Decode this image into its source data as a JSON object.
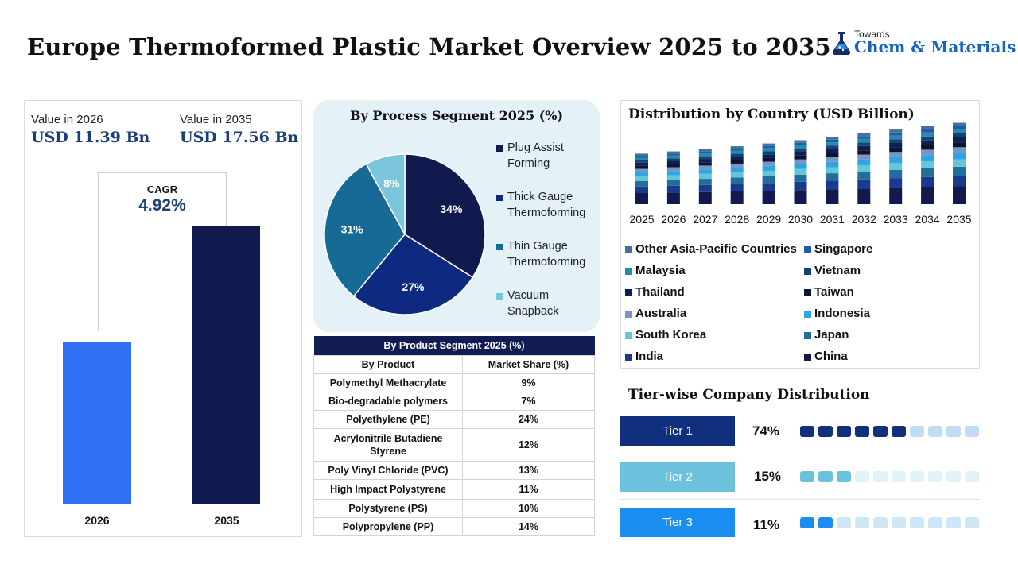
{
  "title": "Europe Thermoformed Plastic Market Overview 2025 to 2035",
  "logo": {
    "line1": "Towards",
    "line2": "Chem & Materials"
  },
  "market_value": {
    "label_2026": "Value in 2026",
    "value_2026": "USD 11.39 Bn",
    "label_2035": "Value in 2035",
    "value_2035": "USD 17.56 Bn",
    "cagr_label": "CAGR",
    "cagr_value": "4.92%",
    "year_2026": "2026",
    "year_2035": "2035"
  },
  "process_segment": {
    "title": "By Process Segment 2025 (%)",
    "legend": [
      {
        "label": "Plug Assist Forming",
        "line1": "Plug Assist",
        "line2": "Forming"
      },
      {
        "label": "Thick Gauge Thermoforming",
        "line1": "Thick Gauge",
        "line2": "Thermoforming"
      },
      {
        "label": "Thin Gauge Thermoforming",
        "line1": "Thin Gauge",
        "line2": "Thermoforming"
      },
      {
        "label": "Vacuum Snapback",
        "line1": "Vacuum",
        "line2": "Snapback"
      }
    ],
    "slice_labels": [
      "34%",
      "27%",
      "31%",
      "8%"
    ]
  },
  "product_table": {
    "title": "By Product Segment 2025 (%)",
    "headers": [
      "By Product",
      "Market Share (%)"
    ],
    "rows": [
      {
        "product": "Polymethyl Methacrylate",
        "share": "9%"
      },
      {
        "product": "Bio-degradable polymers",
        "share": "7%"
      },
      {
        "product": "Polyethylene (PE)",
        "share": "24%"
      },
      {
        "product": "Acrylonitrile Butadiene Styrene",
        "share": "12%"
      },
      {
        "product": "Poly Vinyl Chloride (PVC)",
        "share": "13%"
      },
      {
        "product": "High Impact Polystyrene",
        "share": "11%"
      },
      {
        "product": "Polystyrene (PS)",
        "share": "10%"
      },
      {
        "product": "Polypropylene (PP)",
        "share": "14%"
      }
    ]
  },
  "country_chart": {
    "title": "Distribution by Country (USD Billion)",
    "legend_left": [
      "Other Asia-Pacific Countries",
      "Malaysia",
      "Thailand",
      "Australia",
      "South Korea",
      "India"
    ],
    "legend_right": [
      "Singapore",
      "Vietnam",
      "Taiwan",
      "Indonesia",
      "Japan",
      "China"
    ]
  },
  "tiers": {
    "title": "Tier-wise Company Distribution",
    "items": [
      {
        "label": "Tier 1",
        "pct": "74%",
        "filled": 6
      },
      {
        "label": "Tier 2",
        "pct": "15%",
        "filled": 3
      },
      {
        "label": "Tier 3",
        "pct": "11%",
        "filled": 2
      }
    ]
  },
  "colors": {
    "navy": "#111a4e",
    "bright_blue": "#2f6ff4",
    "accent": "#1c3f7a",
    "tier1": "#10307e",
    "tier2": "#6cc2dd",
    "tier3": "#1a8ef0"
  },
  "chart_data": [
    {
      "type": "bar",
      "categories": [
        "2026",
        "2035"
      ],
      "values": [
        11.39,
        17.56
      ],
      "title": "",
      "xlabel": "",
      "ylabel": "",
      "ylim": [
        0,
        18
      ]
    },
    {
      "type": "pie",
      "title": "By Process Segment 2025 (%)",
      "categories": [
        "Plug Assist Forming",
        "Thick Gauge Thermoforming",
        "Thin Gauge Thermoforming",
        "Vacuum Snapback"
      ],
      "values": [
        34,
        27,
        31,
        8
      ]
    },
    {
      "type": "table",
      "title": "By Product Segment 2025 (%)",
      "columns": [
        "By Product",
        "Market Share (%)"
      ],
      "rows": [
        [
          "Polymethyl Methacrylate",
          9
        ],
        [
          "Bio-degradable polymers",
          7
        ],
        [
          "Polyethylene (PE)",
          24
        ],
        [
          "Acrylonitrile Butadiene Styrene",
          12
        ],
        [
          "Poly Vinyl Chloride (PVC)",
          13
        ],
        [
          "High Impact Polystyrene",
          11
        ],
        [
          "Polystyrene (PS)",
          10
        ],
        [
          "Polypropylene (PP)",
          14
        ]
      ]
    },
    {
      "type": "bar",
      "stacked": true,
      "title": "Distribution by Country (USD Billion)",
      "categories": [
        "2025",
        "2026",
        "2027",
        "2028",
        "2029",
        "2030",
        "2031",
        "2032",
        "2033",
        "2034",
        "2035"
      ],
      "totals": [
        10.9,
        11.39,
        11.9,
        12.5,
        13.1,
        13.8,
        14.5,
        15.3,
        16.1,
        16.8,
        17.56
      ],
      "series_order": [
        "China",
        "India",
        "Japan",
        "South Korea",
        "Indonesia",
        "Australia",
        "Taiwan",
        "Thailand",
        "Vietnam",
        "Malaysia",
        "Singapore",
        "Other Asia-Pacific Countries"
      ],
      "series_share": [
        0.22,
        0.13,
        0.11,
        0.09,
        0.08,
        0.07,
        0.06,
        0.06,
        0.05,
        0.05,
        0.04,
        0.04
      ],
      "legend": "bottom"
    }
  ]
}
